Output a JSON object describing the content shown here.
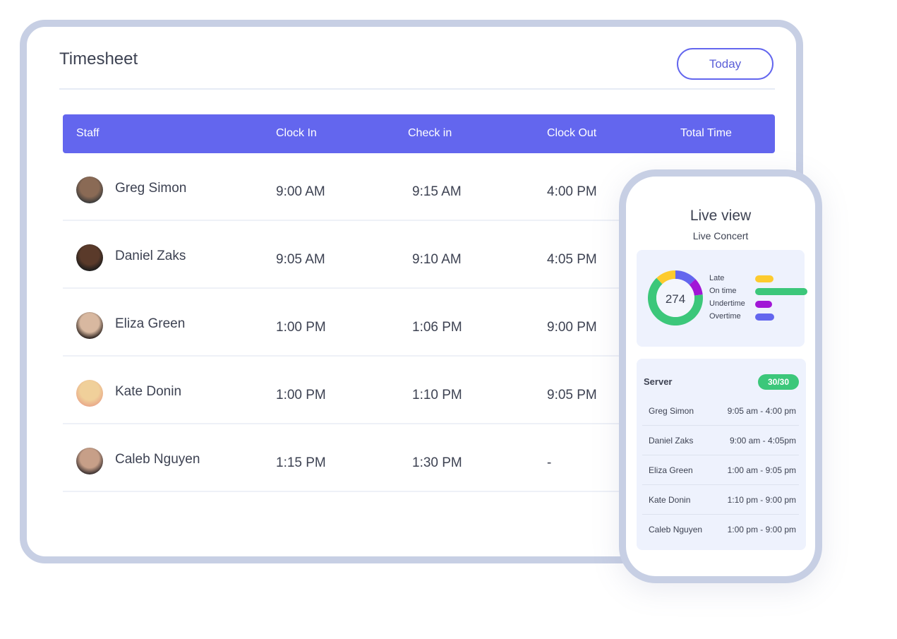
{
  "header": {
    "title": "Timesheet",
    "today_label": "Today"
  },
  "table": {
    "columns": [
      "Staff",
      "Clock In",
      "Check in",
      "Clock Out",
      "Total Time"
    ],
    "rows": [
      {
        "name": "Greg Simon",
        "clock_in": "9:00 AM",
        "check_in": "9:15 AM",
        "clock_out": "4:00 PM"
      },
      {
        "name": "Daniel Zaks",
        "clock_in": "9:05 AM",
        "check_in": "9:10 AM",
        "clock_out": "4:05 PM"
      },
      {
        "name": "Eliza Green",
        "clock_in": "1:00 PM",
        "check_in": "1:06 PM",
        "clock_out": "9:00 PM"
      },
      {
        "name": "Kate Donin",
        "clock_in": "1:00 PM",
        "check_in": "1:10 PM",
        "clock_out": "9:05 PM"
      },
      {
        "name": "Caleb Nguyen",
        "clock_in": "1:15 PM",
        "check_in": "1:30 PM",
        "clock_out": "-"
      }
    ]
  },
  "live": {
    "title": "Live view",
    "subtitle": "Live Concert",
    "total": "274",
    "legend": [
      {
        "label": "Late",
        "color": "#fdcb2e",
        "fraction": 0.12
      },
      {
        "label": "On time",
        "color": "#3cc77a",
        "fraction": 0.65
      },
      {
        "label": "Undertime",
        "color": "#a117d6",
        "fraction": 0.1
      },
      {
        "label": "Overtime",
        "color": "#6366ee",
        "fraction": 0.13
      }
    ],
    "server": {
      "label": "Server",
      "badge": "30/30",
      "rows": [
        {
          "name": "Greg Simon",
          "time": "9:05 am - 4:00 pm"
        },
        {
          "name": "Daniel Zaks",
          "time": "9:00 am - 4:05pm"
        },
        {
          "name": "Eliza Green",
          "time": "1:00 am - 9:05 pm"
        },
        {
          "name": "Kate Donin",
          "time": "1:10 pm - 9:00 pm"
        },
        {
          "name": "Caleb Nguyen",
          "time": "1:00 pm - 9:00 pm"
        }
      ]
    }
  }
}
